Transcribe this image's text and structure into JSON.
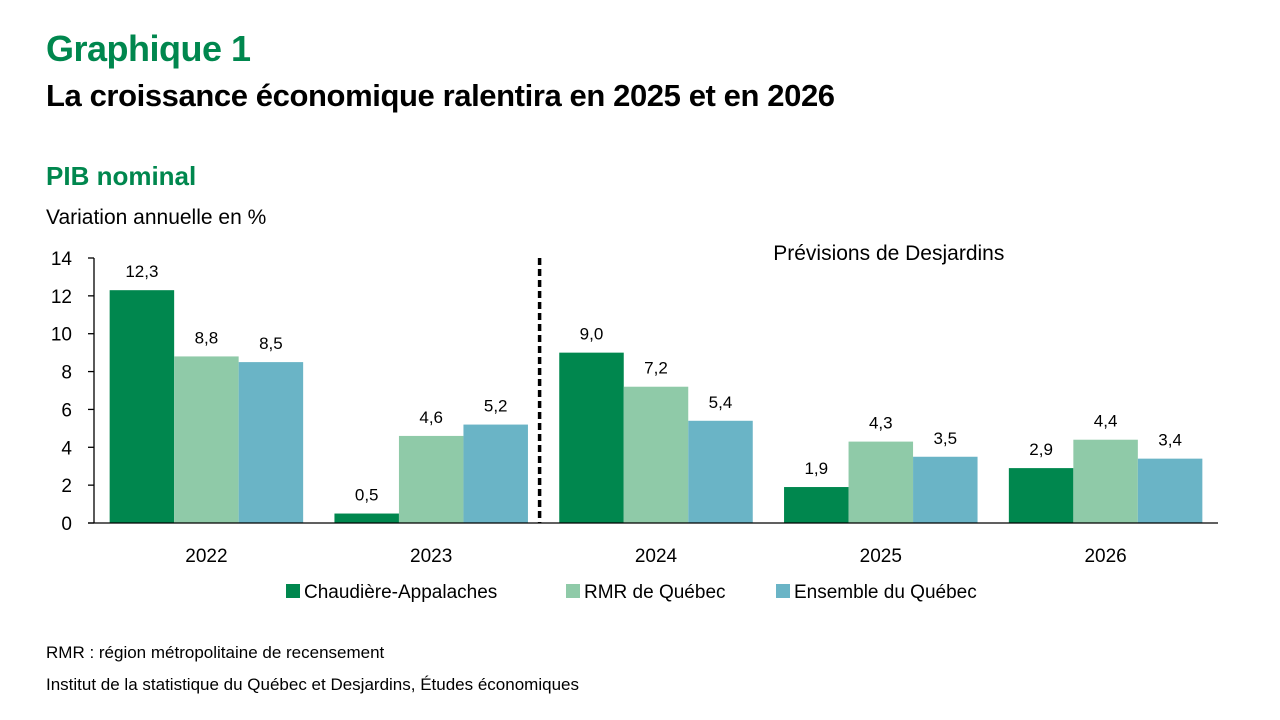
{
  "header": {
    "kicker": "Graphique 1",
    "title": "La croissance économique ralentira en 2025 et en 2026",
    "subtitle": "PIB nominal",
    "unit_label": "Variation annuelle en %"
  },
  "footer": {
    "note": "RMR : région métropolitaine de recensement",
    "source": "Institut de la statistique du Québec et Desjardins, Études économiques"
  },
  "chart_data": {
    "type": "bar",
    "title": "PIB nominal",
    "ylabel": "Variation annuelle en %",
    "xlabel": "",
    "ylim": [
      0,
      14
    ],
    "yticks": [
      0,
      2,
      4,
      6,
      8,
      10,
      12,
      14
    ],
    "grid": false,
    "legend_position": "bottom",
    "decimal_separator": ",",
    "categories": [
      "2022",
      "2023",
      "2024",
      "2025",
      "2026"
    ],
    "series": [
      {
        "name": "Chaudière-Appalaches",
        "color": "#00874e",
        "values": [
          12.3,
          0.5,
          9.0,
          1.9,
          2.9
        ]
      },
      {
        "name": "RMR de Québec",
        "color": "#8fcaa8",
        "values": [
          8.8,
          4.6,
          7.2,
          4.3,
          4.4
        ]
      },
      {
        "name": "Ensemble du Québec",
        "color": "#6ab4c6",
        "values": [
          8.5,
          5.2,
          5.4,
          3.5,
          3.4
        ]
      }
    ],
    "annotations": [
      {
        "type": "vertical-dashed-divider",
        "between": [
          "2023",
          "2024"
        ]
      },
      {
        "type": "text",
        "text": "Prévisions de Desjardins",
        "applies_to": [
          "2024",
          "2025",
          "2026"
        ]
      }
    ]
  }
}
